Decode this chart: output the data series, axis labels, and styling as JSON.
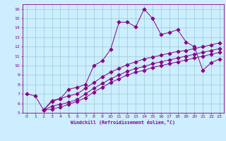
{
  "xlabel": "Windchill (Refroidissement éolien,°C)",
  "xlim": [
    -0.5,
    23.5
  ],
  "ylim": [
    5,
    16.5
  ],
  "xticks": [
    0,
    1,
    2,
    3,
    4,
    5,
    6,
    7,
    8,
    9,
    10,
    11,
    12,
    13,
    14,
    15,
    16,
    17,
    18,
    19,
    20,
    21,
    22,
    23
  ],
  "yticks": [
    5,
    6,
    7,
    8,
    9,
    10,
    11,
    12,
    13,
    14,
    15,
    16
  ],
  "bg_color": "#cceeff",
  "line_color": "#880088",
  "grid_color": "#99cccc",
  "line1_x": [
    0,
    1,
    2,
    3,
    4,
    5,
    6,
    7,
    8,
    9,
    10,
    11,
    12,
    13,
    14,
    15,
    16,
    17,
    18,
    19,
    20,
    21,
    22,
    23
  ],
  "line1_y": [
    7.0,
    6.8,
    5.3,
    6.3,
    6.5,
    7.5,
    7.7,
    8.0,
    10.0,
    10.5,
    11.7,
    14.6,
    14.6,
    14.1,
    16.0,
    15.0,
    13.3,
    13.5,
    13.8,
    12.5,
    12.0,
    9.5,
    10.3,
    10.7
  ],
  "line2_x": [
    2,
    3,
    4,
    5,
    6,
    7,
    8,
    9,
    10,
    11,
    12,
    13,
    14,
    15,
    16,
    17,
    18,
    19,
    20,
    21,
    22,
    23
  ],
  "line2_y": [
    5.3,
    6.2,
    6.5,
    6.8,
    7.0,
    7.6,
    8.2,
    8.8,
    9.3,
    9.7,
    10.1,
    10.4,
    10.7,
    10.9,
    11.1,
    11.3,
    11.5,
    11.6,
    11.8,
    12.0,
    12.2,
    12.4
  ],
  "line3_x": [
    2,
    3,
    4,
    5,
    6,
    7,
    8,
    9,
    10,
    11,
    12,
    13,
    14,
    15,
    16,
    17,
    18,
    19,
    20,
    21,
    22,
    23
  ],
  "line3_y": [
    5.3,
    5.7,
    5.9,
    6.1,
    6.4,
    7.0,
    7.6,
    8.1,
    8.6,
    9.0,
    9.4,
    9.7,
    9.9,
    10.2,
    10.4,
    10.6,
    10.8,
    11.0,
    11.2,
    11.4,
    11.6,
    11.8
  ],
  "line4_x": [
    2,
    3,
    4,
    5,
    6,
    7,
    8,
    9,
    10,
    11,
    12,
    13,
    14,
    15,
    16,
    17,
    18,
    19,
    20,
    21,
    22,
    23
  ],
  "line4_y": [
    5.3,
    5.4,
    5.6,
    5.9,
    6.2,
    6.6,
    7.2,
    7.7,
    8.2,
    8.6,
    9.0,
    9.3,
    9.5,
    9.8,
    10.0,
    10.2,
    10.4,
    10.6,
    10.8,
    11.0,
    11.2,
    11.4
  ]
}
